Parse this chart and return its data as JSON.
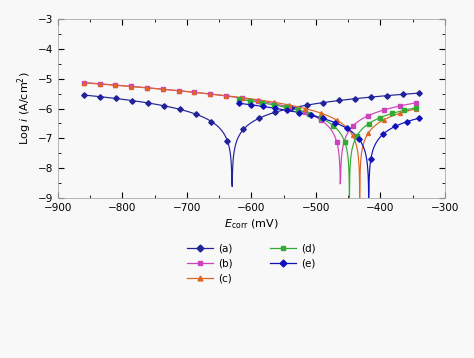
{
  "xlabel": "$E_\\mathrm{corr}$ (mV)",
  "ylabel": "Log $i$ (A/cm$^2$)",
  "xlim": [
    -900,
    -300
  ],
  "ylim": [
    -9,
    -3
  ],
  "xticks": [
    -900,
    -800,
    -700,
    -600,
    -500,
    -400,
    -300
  ],
  "yticks": [
    -9,
    -8,
    -7,
    -6,
    -5,
    -4,
    -3
  ],
  "series": [
    {
      "label": "(a)",
      "color": "#22229a",
      "marker": "D",
      "ecorr": -630,
      "log_icorr": -5.55,
      "ba": 0.55,
      "bc": 0.45,
      "x_start": -860,
      "x_end": -340,
      "n_markers": 22
    },
    {
      "label": "(b)",
      "color": "#cc44bb",
      "marker": "s",
      "ecorr": -462,
      "log_icorr": -5.62,
      "ba": 0.4,
      "bc": 0.32,
      "x_start": -860,
      "x_end": -345,
      "n_markers": 22
    },
    {
      "label": "(c)",
      "color": "#dd6622",
      "marker": "^",
      "ecorr": -432,
      "log_icorr": -5.72,
      "ba": 0.38,
      "bc": 0.3,
      "x_start": -860,
      "x_end": -345,
      "n_markers": 22
    },
    {
      "label": "(d)",
      "color": "#33aa33",
      "marker": "s",
      "ecorr": -448,
      "log_icorr": -5.78,
      "ba": 0.36,
      "bc": 0.28,
      "x_start": -620,
      "x_end": -345,
      "n_markers": 16
    },
    {
      "label": "(e)",
      "color": "#1111bb",
      "marker": "D",
      "ecorr": -418,
      "log_icorr": -6.05,
      "ba": 0.33,
      "bc": 0.25,
      "x_start": -620,
      "x_end": -340,
      "n_markers": 16
    }
  ],
  "background_color": "#f8f8f8",
  "fig_width": 4.74,
  "fig_height": 3.58,
  "dpi": 100
}
